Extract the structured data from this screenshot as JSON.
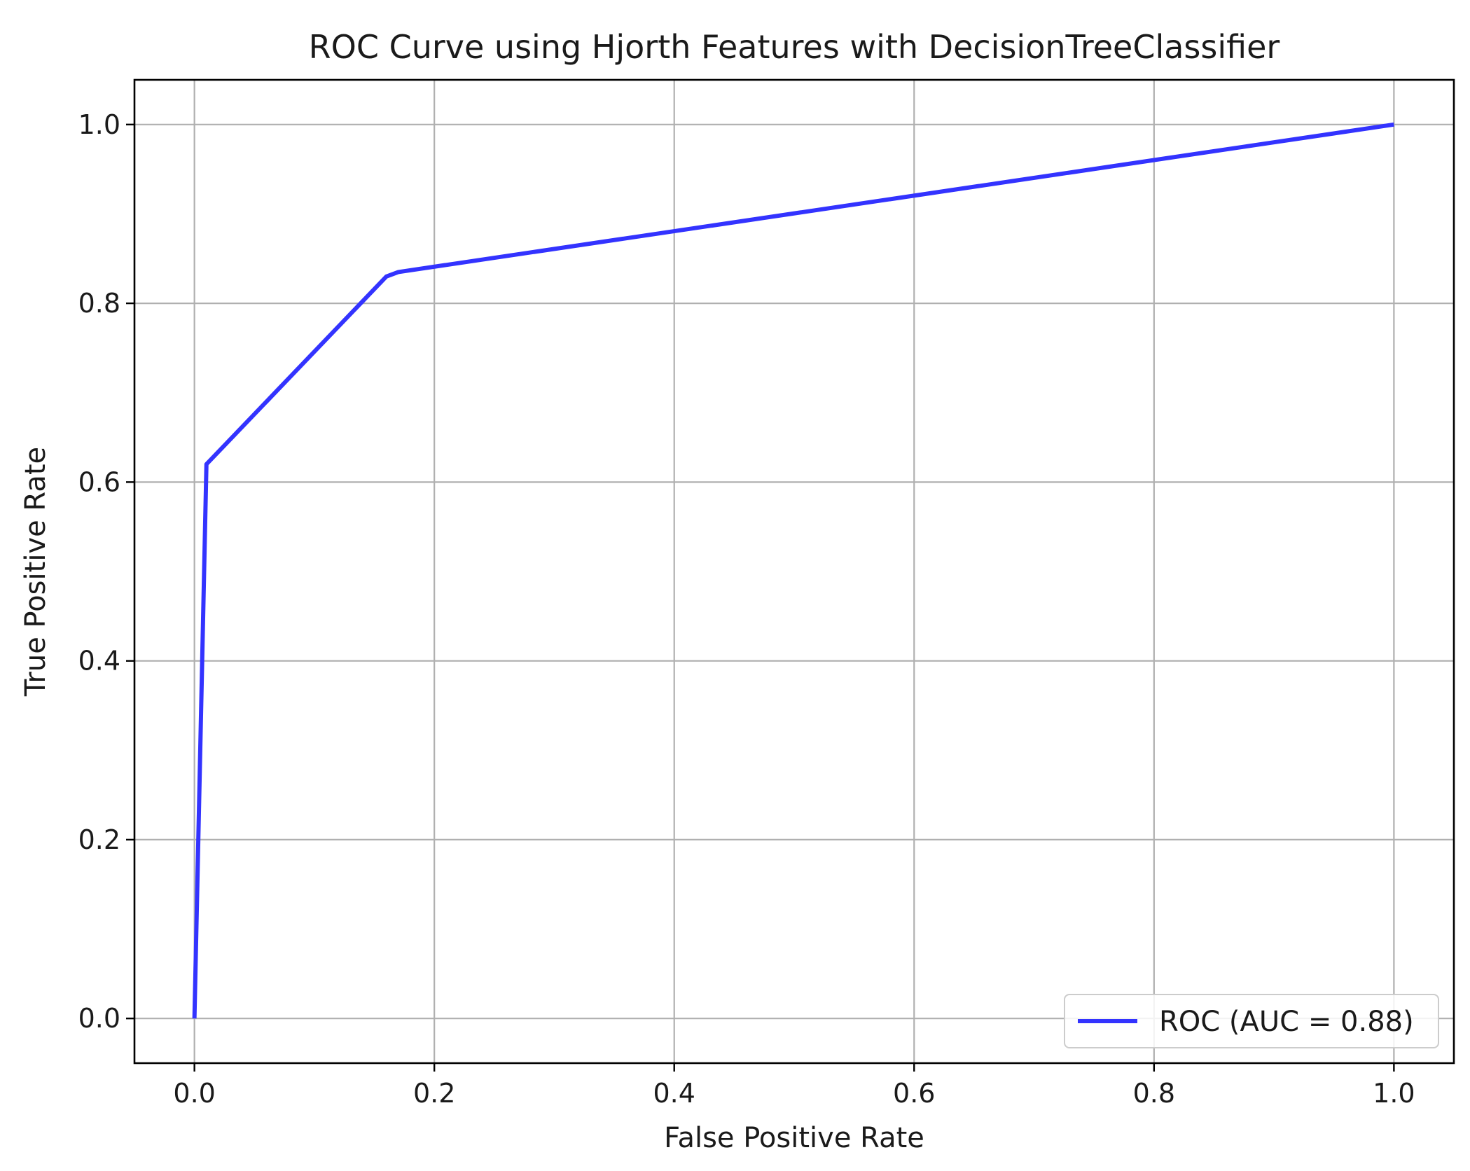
{
  "chart_data": {
    "type": "line",
    "title": "ROC Curve using Hjorth Features with DecisionTreeClassifier",
    "xlabel": "False Positive Rate",
    "ylabel": "True Positive Rate",
    "xlim": [
      -0.05,
      1.05
    ],
    "ylim": [
      -0.05,
      1.05
    ],
    "xticks": [
      0.0,
      0.2,
      0.4,
      0.6,
      0.8,
      1.0
    ],
    "yticks": [
      0.0,
      0.2,
      0.4,
      0.6,
      0.8,
      1.0
    ],
    "xtick_labels": [
      "0.0",
      "0.2",
      "0.4",
      "0.6",
      "0.8",
      "1.0"
    ],
    "ytick_labels": [
      "0.0",
      "0.2",
      "0.4",
      "0.6",
      "0.8",
      "1.0"
    ],
    "grid": true,
    "legend_position": "lower right",
    "series": [
      {
        "name": "ROC (AUC = 0.88)",
        "color": "#3333ff",
        "x": [
          0.0,
          0.01,
          0.16,
          0.17,
          1.0
        ],
        "y": [
          0.0,
          0.62,
          0.83,
          0.835,
          1.0
        ]
      }
    ]
  }
}
